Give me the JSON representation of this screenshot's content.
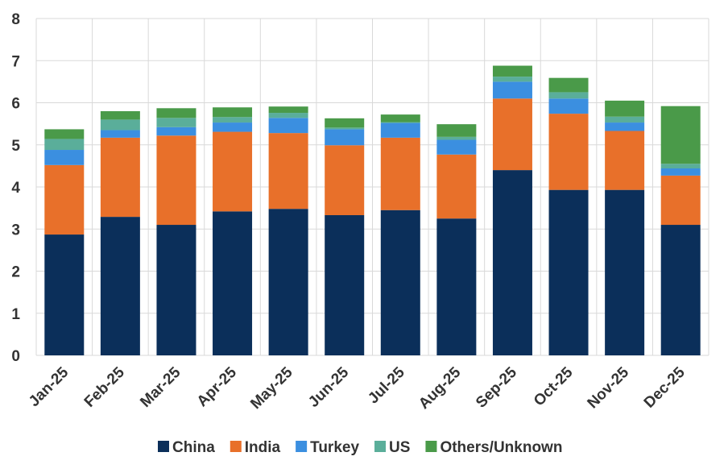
{
  "chart_data": {
    "type": "bar",
    "stacked": true,
    "title": "",
    "xlabel": "",
    "ylabel": "",
    "ylim": [
      0,
      8
    ],
    "yticks": [
      "0",
      "1",
      "2",
      "3",
      "4",
      "5",
      "6",
      "7",
      "8"
    ],
    "grid": true,
    "legend_position": "bottom",
    "categories": [
      "Jan-25",
      "Feb-25",
      "Mar-25",
      "Apr-25",
      "May-25",
      "Jun-25",
      "Jul-25",
      "Aug-25",
      "Sep-25",
      "Oct-25",
      "Nov-25",
      "Dec-25"
    ],
    "series": [
      {
        "name": "China",
        "color": "#0b2f5a",
        "values": [
          2.87,
          3.29,
          3.1,
          3.42,
          3.48,
          3.33,
          3.45,
          3.25,
          4.4,
          3.93,
          3.93,
          3.1
        ]
      },
      {
        "name": "India",
        "color": "#e8702a",
        "values": [
          1.65,
          1.88,
          2.12,
          1.89,
          1.8,
          1.66,
          1.72,
          1.52,
          1.7,
          1.81,
          1.4,
          1.17
        ]
      },
      {
        "name": "Turkey",
        "color": "#3b8fe0",
        "values": [
          0.36,
          0.18,
          0.2,
          0.22,
          0.36,
          0.38,
          0.35,
          0.35,
          0.4,
          0.36,
          0.2,
          0.17
        ]
      },
      {
        "name": "US",
        "color": "#5aae9a",
        "values": [
          0.26,
          0.25,
          0.22,
          0.13,
          0.12,
          0.04,
          0.02,
          0.07,
          0.12,
          0.15,
          0.14,
          0.11
        ]
      },
      {
        "name": "Others/Unknown",
        "color": "#4a9a49",
        "values": [
          0.23,
          0.2,
          0.23,
          0.23,
          0.15,
          0.22,
          0.18,
          0.3,
          0.26,
          0.34,
          0.38,
          1.37
        ]
      }
    ]
  }
}
